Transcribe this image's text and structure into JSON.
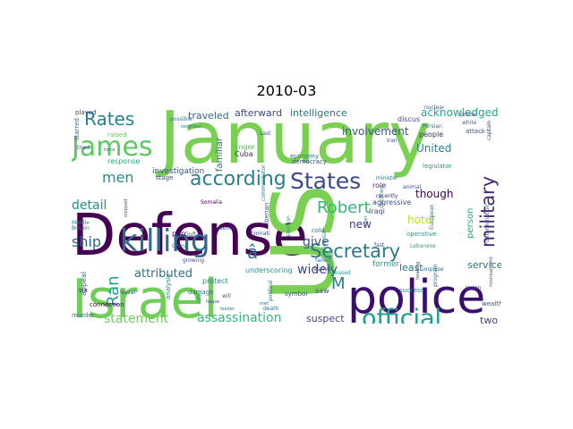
{
  "title": "2010-03",
  "words": [
    {
      "text": "January",
      "color": "#7ad151"
    },
    {
      "text": "Defense",
      "color": "#440154"
    },
    {
      "text": "Israel",
      "color": "#6ece58"
    },
    {
      "text": "police",
      "color": "#3b0f70"
    },
    {
      "text": "US",
      "color": "#7ad151"
    },
    {
      "text": "killing",
      "color": "#31688e"
    },
    {
      "text": "official",
      "color": "#1f9e89"
    },
    {
      "text": "James",
      "color": "#5ec962"
    },
    {
      "text": "States",
      "color": "#3e4989"
    },
    {
      "text": "according",
      "color": "#26828e"
    },
    {
      "text": "Secretary",
      "color": "#2a788e"
    },
    {
      "text": "military",
      "color": "#482878"
    },
    {
      "text": "Robert",
      "color": "#35b779"
    },
    {
      "text": "Rates",
      "color": "#26828e"
    },
    {
      "text": "Ran",
      "color": "#1f9e89"
    },
    {
      "text": "men",
      "color": "#21918c"
    },
    {
      "text": "ship",
      "color": "#31688e"
    },
    {
      "text": "give",
      "color": "#3b528b"
    },
    {
      "text": "assassination",
      "color": "#35b779"
    },
    {
      "text": "statement",
      "color": "#6ece58"
    },
    {
      "text": "detail",
      "color": "#21918c"
    },
    {
      "text": "attributed",
      "color": "#2c728e"
    },
    {
      "text": "widely",
      "color": "#3e4989"
    },
    {
      "text": "acknowledged",
      "color": "#22a884"
    },
    {
      "text": "involvement",
      "color": "#3b528b"
    },
    {
      "text": "intelligence",
      "color": "#2c728e"
    },
    {
      "text": "afterward",
      "color": "#3e4989"
    },
    {
      "text": "traveled",
      "color": "#31688e"
    },
    {
      "text": "new",
      "color": "#443983"
    },
    {
      "text": "hotel",
      "color": "#bddf26"
    },
    {
      "text": "United",
      "color": "#26828e"
    },
    {
      "text": "though",
      "color": "#440154"
    },
    {
      "text": "person",
      "color": "#22a884"
    },
    {
      "text": "suspect",
      "color": "#3e4989"
    },
    {
      "text": "two",
      "color": "#414487"
    },
    {
      "text": "least",
      "color": "#2a788e"
    },
    {
      "text": "service",
      "color": "#2c728e"
    },
    {
      "text": "M",
      "color": "#2a788e"
    },
    {
      "text": "â",
      "color": "#2c728e"
    },
    {
      "text": "investigation",
      "color": "#3b528b"
    },
    {
      "text": "familiar",
      "color": "#31688e"
    },
    {
      "text": "played",
      "color": "#414487"
    },
    {
      "text": "raised",
      "color": "#5ec962"
    },
    {
      "text": "possible",
      "color": "#2a788e"
    },
    {
      "text": "Cuba",
      "color": "#481f70"
    },
    {
      "text": "Last",
      "color": "#3b528b"
    },
    {
      "text": "economy",
      "color": "#2a788e"
    },
    {
      "text": "people",
      "color": "#482878"
    },
    {
      "text": "former",
      "color": "#1f9e89"
    },
    {
      "text": "aggressive",
      "color": "#3b528b"
    },
    {
      "text": "role",
      "color": "#481f70"
    },
    {
      "text": "Iraqi",
      "color": "#3e4989"
    },
    {
      "text": "response",
      "color": "#22a884"
    },
    {
      "text": "stage",
      "color": "#3e4989"
    },
    {
      "text": "singer",
      "color": "#5ec962"
    },
    {
      "text": "pop",
      "color": "#481f70"
    },
    {
      "text": "China",
      "color": "#2a788e"
    },
    {
      "text": "Somalia",
      "color": "#440154"
    },
    {
      "text": "Emirati",
      "color": "#3e4989"
    },
    {
      "text": "protect",
      "color": "#26828e"
    },
    {
      "text": "damage",
      "color": "#2c728e"
    },
    {
      "text": "underscoring",
      "color": "#21918c"
    },
    {
      "text": "symbol",
      "color": "#3b528b"
    },
    {
      "text": "saw",
      "color": "#3e4989"
    },
    {
      "text": "released",
      "color": "#1f9e89"
    },
    {
      "text": "retreat",
      "color": "#22a884"
    },
    {
      "text": "success",
      "color": "#26828e"
    },
    {
      "text": "appeal",
      "color": "#31688e"
    },
    {
      "text": "six",
      "color": "#482878"
    },
    {
      "text": "Naval",
      "color": "#3e4989"
    },
    {
      "text": "murder",
      "color": "#2a788e"
    },
    {
      "text": "connection",
      "color": "#440154"
    },
    {
      "text": "Union",
      "color": "#3e4989"
    },
    {
      "text": "wealthy",
      "color": "#3b528b"
    },
    {
      "text": "nuclear",
      "color": "#3b528b"
    },
    {
      "text": "prime",
      "color": "#414487"
    },
    {
      "text": "discus",
      "color": "#3e4989"
    },
    {
      "text": "minister",
      "color": "#2c728e"
    },
    {
      "text": "democracy",
      "color": "#3e4989"
    },
    {
      "text": "legislator",
      "color": "#1f9e89"
    },
    {
      "text": "Persian",
      "color": "#2c728e"
    },
    {
      "text": "fast",
      "color": "#3b528b"
    },
    {
      "text": "analysis",
      "color": "#26828e"
    },
    {
      "text": "Middle",
      "color": "#21918c"
    },
    {
      "text": "Britain",
      "color": "#2c728e"
    },
    {
      "text": "growing",
      "color": "#3e4989"
    },
    {
      "text": "death",
      "color": "#2c728e"
    },
    {
      "text": "will",
      "color": "#31688e"
    },
    {
      "text": "failed",
      "color": "#2c728e"
    },
    {
      "text": "resolve",
      "color": "#3b528b"
    },
    {
      "text": "Lebanese",
      "color": "#22a884"
    },
    {
      "text": "attack",
      "color": "#3e4989"
    },
    {
      "text": "animal",
      "color": "#3b528b"
    },
    {
      "text": "operative",
      "color": "#1f9e89"
    },
    {
      "text": "cold",
      "color": "#2c728e"
    },
    {
      "text": "Gulf",
      "color": "#3e4989"
    },
    {
      "text": "commentator",
      "color": "#26828e"
    },
    {
      "text": "starred",
      "color": "#31688e"
    },
    {
      "text": "tried",
      "color": "#414487"
    },
    {
      "text": "Iberian",
      "color": "#3b528b"
    },
    {
      "text": "election",
      "color": "#21918c"
    },
    {
      "text": "political",
      "color": "#2c728e"
    },
    {
      "text": "recently",
      "color": "#482878"
    },
    {
      "text": "declined",
      "color": "#2a788e"
    },
    {
      "text": "impulse",
      "color": "#2c728e"
    },
    {
      "text": "determination",
      "color": "#3b528b"
    },
    {
      "text": "captain",
      "color": "#3e4989"
    },
    {
      "text": "European",
      "color": "#2a788e"
    },
    {
      "text": "mistreatment",
      "color": "#3b528b"
    },
    {
      "text": "program",
      "color": "#31688e"
    },
    {
      "text": "heading",
      "color": "#3e4989"
    },
    {
      "text": "dismiss",
      "color": "#21918c"
    },
    {
      "text": "white",
      "color": "#31688e"
    },
    {
      "text": "identify",
      "color": "#3e4989"
    },
    {
      "text": "neighbor",
      "color": "#2a788e"
    },
    {
      "text": "force",
      "color": "#2c728e"
    },
    {
      "text": "stopped",
      "color": "#3b528b"
    },
    {
      "text": "city",
      "color": "#21918c"
    },
    {
      "text": "leader",
      "color": "#26828e"
    },
    {
      "text": "house",
      "color": "#3e4989"
    },
    {
      "text": "met",
      "color": "#2c728e"
    },
    {
      "text": "Iran",
      "color": "#3e4989"
    },
    {
      "text": "tiger",
      "color": "#2a788e"
    }
  ]
}
